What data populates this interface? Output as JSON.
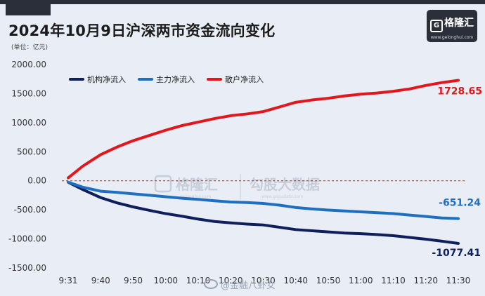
{
  "header": {
    "title": "2024年10月9日沪深两市资金流向变化",
    "unit": "(单位：亿元)"
  },
  "logo": {
    "brand": "格隆汇",
    "site": "www.gelonghui.com",
    "mark": "G"
  },
  "watermark": {
    "brand": "格隆汇",
    "site": "gelonghui.com",
    "text": "勾股大数据",
    "site2": "www.gogudata.com"
  },
  "weibo": {
    "text": "@金融八卦女"
  },
  "chart_data": {
    "type": "line",
    "title": "2024年10月9日沪深两市资金流向变化",
    "xlabel": "",
    "ylabel": "",
    "ylim": [
      -1500,
      2000
    ],
    "yticks": [
      2000,
      1500,
      1000,
      500,
      0,
      -500,
      -1000,
      -1500
    ],
    "ytick_labels": [
      "2000.00",
      "1500.00",
      "1000.00",
      "500.00",
      "0.00",
      "-500.00",
      "-1000.00",
      "-1500.00"
    ],
    "xticks": [
      "9:31",
      "9:40",
      "9:50",
      "10:00",
      "10:10",
      "10:20",
      "10:30",
      "10:40",
      "10:50",
      "11:00",
      "11:10",
      "11:20",
      "11:30"
    ],
    "legend_placement": "top-left",
    "zero_line": "dashed red",
    "grid": false,
    "series": [
      {
        "name": "机构净流入",
        "color": "#0e1f5b",
        "x": [
          "9:31",
          "9:35",
          "9:40",
          "9:45",
          "9:50",
          "9:55",
          "10:00",
          "10:05",
          "10:10",
          "10:15",
          "10:20",
          "10:25",
          "10:30",
          "10:35",
          "10:40",
          "10:45",
          "10:50",
          "10:55",
          "11:00",
          "11:05",
          "11:10",
          "11:15",
          "11:20",
          "11:25",
          "11:30"
        ],
        "values": [
          -25,
          -150,
          -290,
          -380,
          -450,
          -510,
          -565,
          -610,
          -660,
          -700,
          -725,
          -745,
          -760,
          -800,
          -840,
          -860,
          -880,
          -900,
          -910,
          -925,
          -945,
          -975,
          -1005,
          -1040,
          -1077.41
        ],
        "end_label": "-1077.41"
      },
      {
        "name": "主力净流入",
        "color": "#1f6fc0",
        "x": [
          "9:31",
          "9:35",
          "9:40",
          "9:45",
          "9:50",
          "9:55",
          "10:00",
          "10:05",
          "10:10",
          "10:15",
          "10:20",
          "10:25",
          "10:30",
          "10:35",
          "10:40",
          "10:45",
          "10:50",
          "10:55",
          "11:00",
          "11:05",
          "11:10",
          "11:15",
          "11:20",
          "11:25",
          "11:30"
        ],
        "values": [
          -25,
          -110,
          -180,
          -200,
          -225,
          -250,
          -275,
          -300,
          -320,
          -345,
          -365,
          -375,
          -390,
          -420,
          -460,
          -485,
          -505,
          -520,
          -535,
          -550,
          -565,
          -590,
          -615,
          -640,
          -651.24
        ],
        "end_label": "-651.24"
      },
      {
        "name": "散户净流入",
        "color": "#e3161c",
        "x": [
          "9:31",
          "9:35",
          "9:40",
          "9:45",
          "9:50",
          "9:55",
          "10:00",
          "10:05",
          "10:10",
          "10:15",
          "10:20",
          "10:25",
          "10:30",
          "10:35",
          "10:40",
          "10:45",
          "10:50",
          "10:55",
          "11:00",
          "11:05",
          "11:10",
          "11:15",
          "11:20",
          "11:25",
          "11:30"
        ],
        "values": [
          50,
          250,
          450,
          580,
          690,
          780,
          870,
          950,
          1010,
          1070,
          1120,
          1150,
          1190,
          1270,
          1350,
          1390,
          1420,
          1460,
          1490,
          1510,
          1540,
          1580,
          1640,
          1690,
          1728.65
        ],
        "end_label": "1728.65"
      }
    ]
  }
}
